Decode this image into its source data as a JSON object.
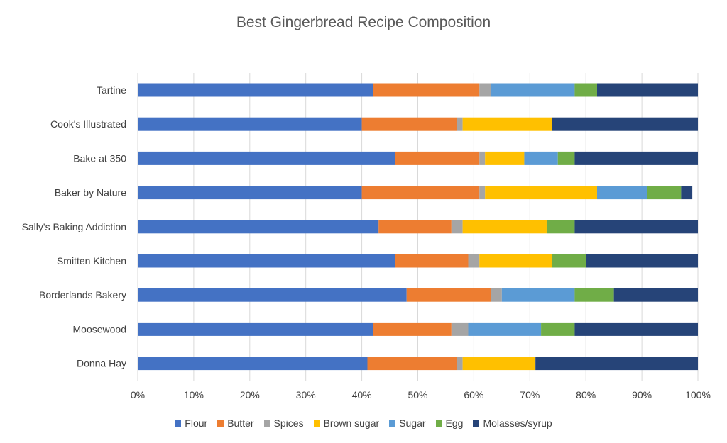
{
  "chart_data": {
    "type": "bar",
    "orientation": "horizontal",
    "stacked": "percent",
    "title": "Best Gingerbread Recipe Composition",
    "categories": [
      "Tartine",
      "Cook's Illustrated",
      "Bake at 350",
      "Baker by Nature",
      "Sally's Baking Addiction",
      "Smitten Kitchen",
      "Borderlands Bakery",
      "Moosewood",
      "Donna Hay"
    ],
    "series": [
      {
        "name": "Flour",
        "color": "#4472C4",
        "values": [
          42,
          40,
          46,
          40,
          43,
          46,
          48,
          42,
          41
        ]
      },
      {
        "name": "Butter",
        "color": "#ED7D31",
        "values": [
          19,
          17,
          15,
          21,
          13,
          13,
          15,
          14,
          16
        ]
      },
      {
        "name": "Spices",
        "color": "#A5A5A5",
        "values": [
          2,
          1,
          1,
          1,
          2,
          2,
          2,
          3,
          1
        ]
      },
      {
        "name": "Brown sugar",
        "color": "#FFC000",
        "values": [
          0,
          16,
          7,
          20,
          15,
          13,
          0,
          0,
          13
        ]
      },
      {
        "name": "Sugar",
        "color": "#5B9BD5",
        "values": [
          15,
          0,
          6,
          9,
          0,
          0,
          13,
          13,
          0
        ]
      },
      {
        "name": "Egg",
        "color": "#70AD47",
        "values": [
          4,
          0,
          3,
          6,
          5,
          6,
          7,
          6,
          0
        ]
      },
      {
        "name": "Molasses/syrup",
        "color": "#264478",
        "values": [
          18,
          26,
          22,
          2,
          22,
          20,
          15,
          22,
          29
        ]
      }
    ],
    "xlim": [
      0,
      100
    ],
    "xticks": [
      "0%",
      "10%",
      "20%",
      "30%",
      "40%",
      "50%",
      "60%",
      "70%",
      "80%",
      "90%",
      "100%"
    ],
    "grid": true,
    "legend": "bottom"
  }
}
